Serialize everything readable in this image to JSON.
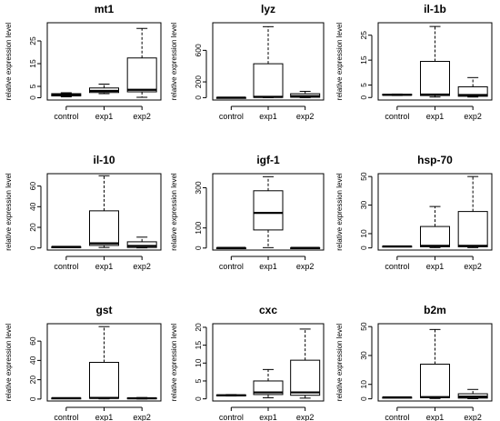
{
  "figure": {
    "y_axis_label": "relative expression level"
  },
  "chart_data": [
    {
      "type": "box",
      "title": "mt1",
      "categories": [
        "control",
        "exp1",
        "exp2"
      ],
      "ylabel": "relative expression level",
      "ylim": [
        -1,
        33
      ],
      "yticks": [
        0,
        5,
        15,
        25
      ],
      "series": [
        {
          "category": "control",
          "min": 0.4,
          "q1": 0.8,
          "median": 1.2,
          "q3": 1.8,
          "max": 2.2
        },
        {
          "category": "exp1",
          "min": 1.8,
          "q1": 2.3,
          "median": 3.0,
          "q3": 4.3,
          "max": 6.0
        },
        {
          "category": "exp2",
          "min": 0.2,
          "q1": 2.6,
          "median": 3.5,
          "q3": 17.5,
          "max": 30.5
        }
      ]
    },
    {
      "type": "box",
      "title": "lyz",
      "categories": [
        "control",
        "exp1",
        "exp2"
      ],
      "ylabel": "relative expression level",
      "ylim": [
        -30,
        950
      ],
      "yticks": [
        0,
        200,
        600
      ],
      "series": [
        {
          "category": "control",
          "min": 0,
          "q1": 0,
          "median": 1,
          "q3": 2,
          "max": 3
        },
        {
          "category": "exp1",
          "min": 0,
          "q1": 3,
          "median": 10,
          "q3": 430,
          "max": 900
        },
        {
          "category": "exp2",
          "min": 0,
          "q1": 5,
          "median": 20,
          "q3": 50,
          "max": 80
        }
      ]
    },
    {
      "type": "box",
      "title": "il-1b",
      "categories": [
        "control",
        "exp1",
        "exp2"
      ],
      "ylabel": "relative expression level",
      "ylim": [
        -1,
        30
      ],
      "yticks": [
        0,
        5,
        15,
        25
      ],
      "series": [
        {
          "category": "control",
          "min": 0.8,
          "q1": 1.0,
          "median": 1.1,
          "q3": 1.3,
          "max": 1.4
        },
        {
          "category": "exp1",
          "min": 0.2,
          "q1": 0.8,
          "median": 1.2,
          "q3": 14.5,
          "max": 28.5
        },
        {
          "category": "exp2",
          "min": 0.2,
          "q1": 0.5,
          "median": 1.0,
          "q3": 4.3,
          "max": 8.0
        }
      ]
    },
    {
      "type": "box",
      "title": "il-10",
      "categories": [
        "control",
        "exp1",
        "exp2"
      ],
      "ylabel": "relative expression level",
      "ylim": [
        -2,
        72
      ],
      "yticks": [
        0,
        20,
        40,
        60
      ],
      "series": [
        {
          "category": "control",
          "min": 0.8,
          "q1": 1.0,
          "median": 1.1,
          "q3": 1.2,
          "max": 1.3
        },
        {
          "category": "exp1",
          "min": 0.5,
          "q1": 2.5,
          "median": 4.5,
          "q3": 36,
          "max": 70
        },
        {
          "category": "exp2",
          "min": 0.1,
          "q1": 0.5,
          "median": 2.0,
          "q3": 6.0,
          "max": 10.5
        }
      ]
    },
    {
      "type": "box",
      "title": "igf-1",
      "categories": [
        "control",
        "exp1",
        "exp2"
      ],
      "ylabel": "relative expression level",
      "ylim": [
        -10,
        370
      ],
      "yticks": [
        0,
        100,
        300
      ],
      "series": [
        {
          "category": "control",
          "min": 0.5,
          "q1": 0.8,
          "median": 1.0,
          "q3": 1.2,
          "max": 1.5
        },
        {
          "category": "exp1",
          "min": 2,
          "q1": 90,
          "median": 175,
          "q3": 285,
          "max": 355
        },
        {
          "category": "exp2",
          "min": 0.1,
          "q1": 0.5,
          "median": 1.0,
          "q3": 1.5,
          "max": 2.0
        }
      ]
    },
    {
      "type": "box",
      "title": "hsp-70",
      "categories": [
        "control",
        "exp1",
        "exp2"
      ],
      "ylabel": "relative expression level",
      "ylim": [
        -1.5,
        52
      ],
      "yticks": [
        0,
        10,
        30,
        50
      ],
      "series": [
        {
          "category": "control",
          "min": 0.8,
          "q1": 1.0,
          "median": 1.1,
          "q3": 1.2,
          "max": 1.3
        },
        {
          "category": "exp1",
          "min": 0.2,
          "q1": 0.8,
          "median": 1.5,
          "q3": 15,
          "max": 29
        },
        {
          "category": "exp2",
          "min": 0.2,
          "q1": 0.8,
          "median": 1.5,
          "q3": 25.5,
          "max": 50
        }
      ]
    },
    {
      "type": "box",
      "title": "gst",
      "categories": [
        "control",
        "exp1",
        "exp2"
      ],
      "ylabel": "relative expression level",
      "ylim": [
        -2,
        78
      ],
      "yticks": [
        0,
        20,
        40,
        60
      ],
      "series": [
        {
          "category": "control",
          "min": 0.7,
          "q1": 0.9,
          "median": 1.0,
          "q3": 1.1,
          "max": 1.3
        },
        {
          "category": "exp1",
          "min": 0.2,
          "q1": 0.8,
          "median": 1.2,
          "q3": 38,
          "max": 75
        },
        {
          "category": "exp2",
          "min": 0.1,
          "q1": 0.4,
          "median": 0.8,
          "q3": 1.2,
          "max": 1.6
        }
      ]
    },
    {
      "type": "box",
      "title": "cxc",
      "categories": [
        "control",
        "exp1",
        "exp2"
      ],
      "ylabel": "relative expression level",
      "ylim": [
        -0.6,
        21
      ],
      "yticks": [
        0,
        5,
        10,
        15,
        20
      ],
      "series": [
        {
          "category": "control",
          "min": 0.8,
          "q1": 0.9,
          "median": 1.0,
          "q3": 1.1,
          "max": 1.2
        },
        {
          "category": "exp1",
          "min": 0.3,
          "q1": 1.2,
          "median": 1.8,
          "q3": 5.0,
          "max": 8.2
        },
        {
          "category": "exp2",
          "min": 0.2,
          "q1": 1.0,
          "median": 1.8,
          "q3": 10.8,
          "max": 19.5
        }
      ]
    },
    {
      "type": "box",
      "title": "b2m",
      "categories": [
        "control",
        "exp1",
        "exp2"
      ],
      "ylabel": "relative expression level",
      "ylim": [
        -1.5,
        52
      ],
      "yticks": [
        0,
        10,
        30,
        50
      ],
      "series": [
        {
          "category": "control",
          "min": 0.7,
          "q1": 0.9,
          "median": 1.0,
          "q3": 1.1,
          "max": 1.3
        },
        {
          "category": "exp1",
          "min": 0.2,
          "q1": 0.8,
          "median": 1.2,
          "q3": 24,
          "max": 48
        },
        {
          "category": "exp2",
          "min": 0.1,
          "q1": 0.5,
          "median": 1.5,
          "q3": 3.5,
          "max": 6.5
        }
      ]
    }
  ]
}
